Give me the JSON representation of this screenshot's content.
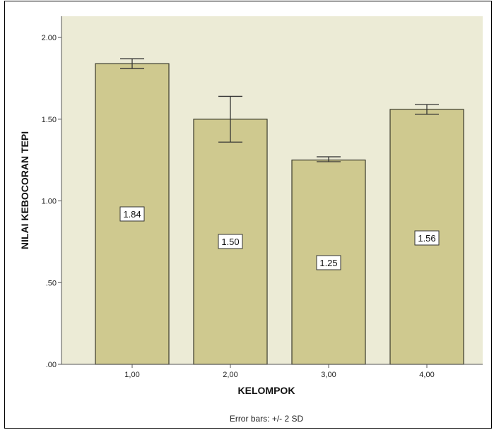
{
  "chart_data": {
    "type": "bar",
    "categories": [
      "1,00",
      "2,00",
      "3,00",
      "4,00"
    ],
    "values": [
      1.84,
      1.5,
      1.25,
      1.56
    ],
    "value_labels": [
      "1.84",
      "1.50",
      "1.25",
      "1.56"
    ],
    "error_bars": {
      "lower": [
        1.81,
        1.36,
        1.24,
        1.53
      ],
      "upper": [
        1.87,
        1.64,
        1.27,
        1.59
      ]
    },
    "xlabel": "KELOMPOK",
    "ylabel": "NILAI KEBOCORAN TEPI",
    "ylim": [
      0,
      2.13
    ],
    "yticks": [
      0,
      0.5,
      1.0,
      1.5,
      2.0
    ],
    "ytick_labels": [
      ".00",
      ".50",
      "1.00",
      "1.50",
      "2.00"
    ],
    "footnote": "Error bars: +/- 2 SD",
    "grid": false,
    "colors": {
      "bar_fill": "#cfc98f",
      "bar_stroke": "#3a3a2a",
      "plot_background": "#ecebd6",
      "label_box": "#ffffff"
    }
  }
}
